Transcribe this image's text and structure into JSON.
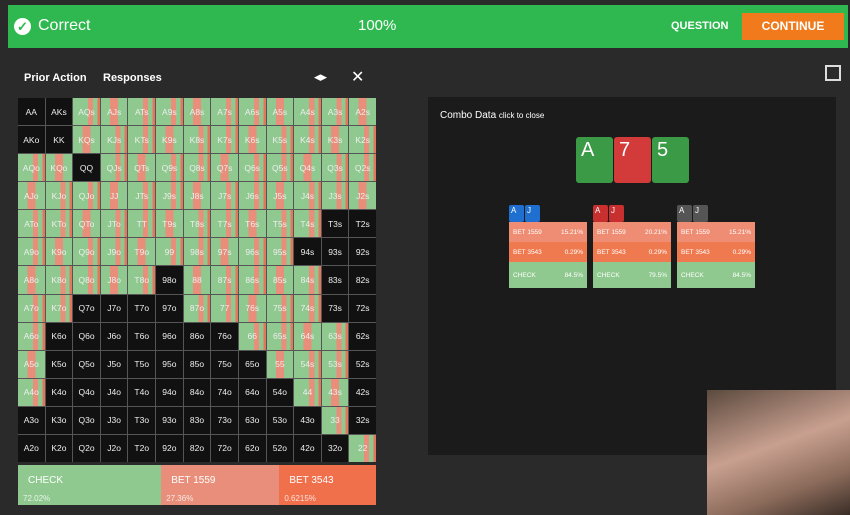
{
  "header": {
    "status": "Correct",
    "score": "100%",
    "question_button": "QUESTION",
    "continue_button": "CONTINUE"
  },
  "tabs": [
    "Prior Action",
    "Responses"
  ],
  "grid": {
    "rows": [
      [
        "AA",
        "AKs",
        "AQs",
        "AJs",
        "ATs",
        "A9s",
        "A8s",
        "A7s",
        "A6s",
        "A5s",
        "A4s",
        "A3s",
        "A2s"
      ],
      [
        "AKo",
        "KK",
        "KQs",
        "KJs",
        "KTs",
        "K9s",
        "K8s",
        "K7s",
        "K6s",
        "K5s",
        "K4s",
        "K3s",
        "K2s"
      ],
      [
        "AQo",
        "KQo",
        "QQ",
        "QJs",
        "QTs",
        "Q9s",
        "Q8s",
        "Q7s",
        "Q6s",
        "Q5s",
        "Q4s",
        "Q3s",
        "Q2s"
      ],
      [
        "AJo",
        "KJo",
        "QJo",
        "JJ",
        "JTs",
        "J9s",
        "J8s",
        "J7s",
        "J6s",
        "J5s",
        "J4s",
        "J3s",
        "J2s"
      ],
      [
        "ATo",
        "KTo",
        "QTo",
        "JTo",
        "TT",
        "T9s",
        "T8s",
        "T7s",
        "T6s",
        "T5s",
        "T4s",
        "T3s",
        "T2s"
      ],
      [
        "A9o",
        "K9o",
        "Q9o",
        "J9o",
        "T9o",
        "99",
        "98s",
        "97s",
        "96s",
        "95s",
        "94s",
        "93s",
        "92s"
      ],
      [
        "A8o",
        "K8o",
        "Q8o",
        "J8o",
        "T8o",
        "98o",
        "88",
        "87s",
        "86s",
        "85s",
        "84s",
        "83s",
        "82s"
      ],
      [
        "A7o",
        "K7o",
        "Q7o",
        "J7o",
        "T7o",
        "97o",
        "87o",
        "77",
        "76s",
        "75s",
        "74s",
        "73s",
        "72s"
      ],
      [
        "A6o",
        "K6o",
        "Q6o",
        "J6o",
        "T6o",
        "96o",
        "86o",
        "76o",
        "66",
        "65s",
        "64s",
        "63s",
        "62s"
      ],
      [
        "A5o",
        "K5o",
        "Q5o",
        "J5o",
        "T5o",
        "95o",
        "85o",
        "75o",
        "65o",
        "55",
        "54s",
        "53s",
        "52s"
      ],
      [
        "A4o",
        "K4o",
        "Q4o",
        "J4o",
        "T4o",
        "94o",
        "84o",
        "74o",
        "64o",
        "54o",
        "44",
        "43s",
        "42s"
      ],
      [
        "A3o",
        "K3o",
        "Q3o",
        "J3o",
        "T3o",
        "93o",
        "83o",
        "73o",
        "63o",
        "53o",
        "43o",
        "33",
        "32s"
      ],
      [
        "A2o",
        "K2o",
        "Q2o",
        "J2o",
        "T2o",
        "92o",
        "82o",
        "72o",
        "62o",
        "52o",
        "42o",
        "32o",
        "22"
      ]
    ]
  },
  "legend": [
    {
      "action": "CHECK",
      "freq": "72.02%"
    },
    {
      "action": "BET 1559",
      "freq": "27.36%"
    },
    {
      "action": "BET 3543",
      "freq": "0.6215%"
    }
  ],
  "combo_panel": {
    "title": "Combo Data",
    "hint": "click to close",
    "board": [
      "A",
      "7",
      "5"
    ],
    "combos": [
      {
        "cards": [
          "A",
          "J"
        ],
        "rows": [
          {
            "action": "BET 1559",
            "freq": "15.21%"
          },
          {
            "action": "BET 3543",
            "freq": "0.29%"
          },
          {
            "action": "CHECK",
            "freq": "84.5%"
          }
        ]
      },
      {
        "cards": [
          "A",
          "J"
        ],
        "rows": [
          {
            "action": "BET 1559",
            "freq": "20.21%"
          },
          {
            "action": "BET 3543",
            "freq": "0.29%"
          },
          {
            "action": "CHECK",
            "freq": "79.5%"
          }
        ]
      },
      {
        "cards": [
          "A",
          "J"
        ],
        "rows": [
          {
            "action": "BET 1559",
            "freq": "15.21%"
          },
          {
            "action": "BET 3543",
            "freq": "0.29%"
          },
          {
            "action": "CHECK",
            "freq": "84.5%"
          }
        ]
      }
    ]
  }
}
